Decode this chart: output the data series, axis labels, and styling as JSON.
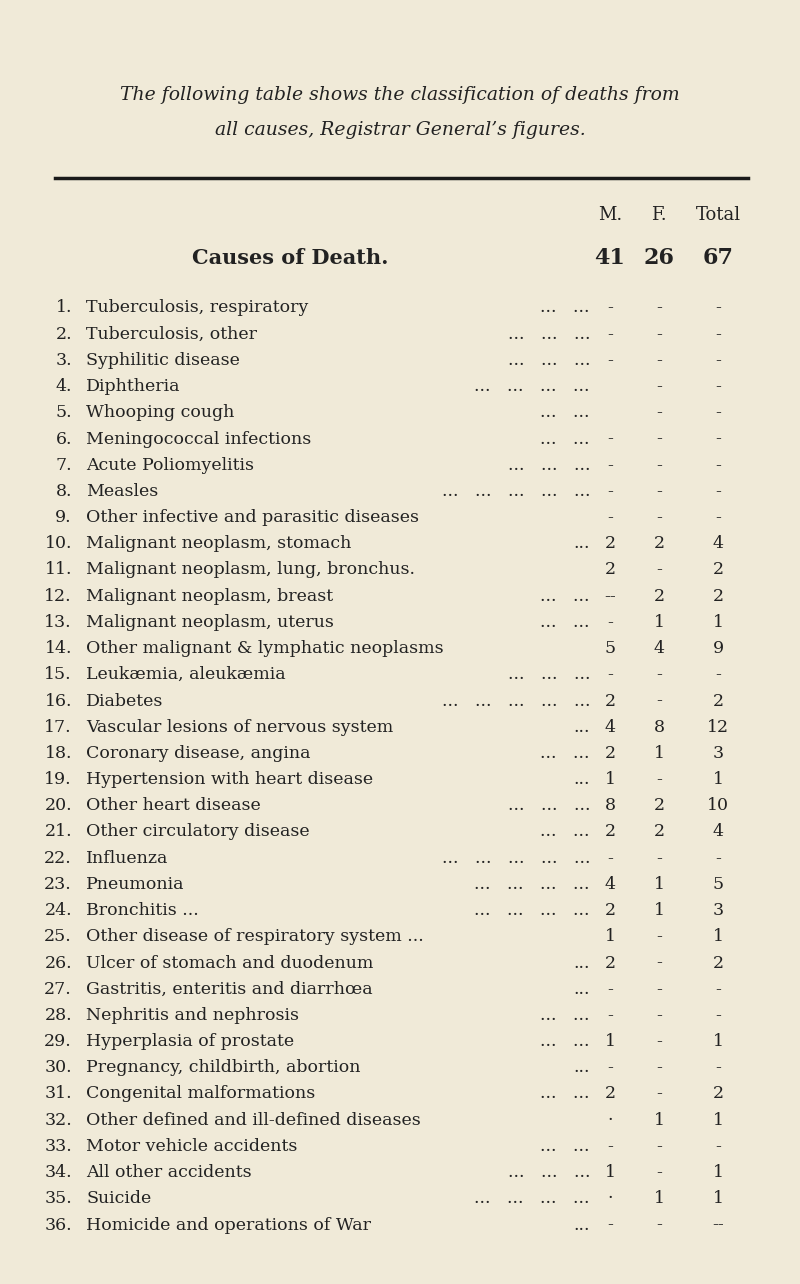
{
  "title_line1": "The following table shows the classification of deaths from",
  "title_line2": "all causes, Registrar General’s figures.",
  "bg_color": "#f0ead8",
  "text_color": "#222222",
  "table_data": [
    {
      "num": "1.",
      "cause": "Tuberculosis, respiratory",
      "dots": "...   ...",
      "M": "-",
      "F": "-",
      "T": "-"
    },
    {
      "num": "2.",
      "cause": "Tuberculosis, other",
      "dots": "...   ...   ...",
      "M": "-",
      "F": "-",
      "T": "-"
    },
    {
      "num": "3.",
      "cause": "Syphilitic disease",
      "dots": "...   ...   ...",
      "M": "-",
      "F": "-",
      "T": "-"
    },
    {
      "num": "4.",
      "cause": "Diphtheria",
      "dots": "...   ...   ...   ...",
      "M": "",
      "F": "-",
      "T": "-"
    },
    {
      "num": "5.",
      "cause": "Whooping cough",
      "dots": "...   ...",
      "M": "",
      "F": "-",
      "T": "-"
    },
    {
      "num": "6.",
      "cause": "Meningococcal infections",
      "dots": "...   ...",
      "M": "-",
      "F": "-",
      "T": "-"
    },
    {
      "num": "7.",
      "cause": "Acute Poliomyelitis",
      "dots": "...   ...   ...",
      "M": "-",
      "F": "-",
      "T": "-"
    },
    {
      "num": "8.",
      "cause": "Measles",
      "dots": "...   ...   ...   ...   ...",
      "M": "-",
      "F": "-",
      "T": "-"
    },
    {
      "num": "9.",
      "cause": "Other infective and parasitic diseases",
      "dots": "",
      "M": "-",
      "F": "-",
      "T": "-"
    },
    {
      "num": "10.",
      "cause": "Malignant neoplasm, stomach",
      "dots": "...",
      "M": "2",
      "F": "2",
      "T": "4"
    },
    {
      "num": "11.",
      "cause": "Malignant neoplasm, lung, bronchus.",
      "dots": "",
      "M": "2",
      "F": "-",
      "T": "2"
    },
    {
      "num": "12.",
      "cause": "Malignant neoplasm, breast",
      "dots": "...   ...",
      "M": "--",
      "F": "2",
      "T": "2"
    },
    {
      "num": "13.",
      "cause": "Malignant neoplasm, uterus",
      "dots": "...   ...",
      "M": "-",
      "F": "1",
      "T": "1"
    },
    {
      "num": "14.",
      "cause": "Other malignant & lymphatic neoplasms",
      "dots": "",
      "M": "5",
      "F": "4",
      "T": "9"
    },
    {
      "num": "15.",
      "cause": "Leukæmia, aleukæmia",
      "dots": "...   ...   ...",
      "M": "-",
      "F": "-",
      "T": "-"
    },
    {
      "num": "16.",
      "cause": "Diabetes",
      "dots": "...   ...   ...   ...   ...",
      "M": "2",
      "F": "-",
      "T": "2"
    },
    {
      "num": "17.",
      "cause": "Vascular lesions of nervous system",
      "dots": "...",
      "M": "4",
      "F": "8",
      "T": "12"
    },
    {
      "num": "18.",
      "cause": "Coronary disease, angina",
      "dots": "...   ...",
      "M": "2",
      "F": "1",
      "T": "3"
    },
    {
      "num": "19.",
      "cause": "Hypertension with heart disease",
      "dots": "...",
      "M": "1",
      "F": "-",
      "T": "1"
    },
    {
      "num": "20.",
      "cause": "Other heart disease",
      "dots": "...   ...   ...",
      "M": "8",
      "F": "2",
      "T": "10"
    },
    {
      "num": "21.",
      "cause": "Other circulatory disease",
      "dots": "...   ...",
      "M": "2",
      "F": "2",
      "T": "4"
    },
    {
      "num": "22.",
      "cause": "Influenza",
      "dots": "...   ...   ...   ...   ...",
      "M": "-",
      "F": "-",
      "T": "-"
    },
    {
      "num": "23.",
      "cause": "Pneumonia",
      "dots": "...   ...   ...   ...",
      "M": "4",
      "F": "1",
      "T": "5"
    },
    {
      "num": "24.",
      "cause": "Bronchitis ...",
      "dots": "...   ...   ...   ...",
      "M": "2",
      "F": "1",
      "T": "3"
    },
    {
      "num": "25.",
      "cause": "Other disease of respiratory system ...",
      "dots": "",
      "M": "1",
      "F": "-",
      "T": "1"
    },
    {
      "num": "26.",
      "cause": "Ulcer of stomach and duodenum",
      "dots": "...",
      "M": "2",
      "F": "-",
      "T": "2"
    },
    {
      "num": "27.",
      "cause": "Gastritis, enteritis and diarrhœa",
      "dots": "...",
      "M": "-",
      "F": "-",
      "T": "-"
    },
    {
      "num": "28.",
      "cause": "Nephritis and nephrosis",
      "dots": "...   ...",
      "M": "-",
      "F": "-",
      "T": "-"
    },
    {
      "num": "29.",
      "cause": "Hyperplasia of prostate",
      "dots": "...   ...",
      "M": "1",
      "F": "-",
      "T": "1"
    },
    {
      "num": "30.",
      "cause": "Pregnancy, childbirth, abortion",
      "dots": "...",
      "M": "-",
      "F": "-",
      "T": "-"
    },
    {
      "num": "31.",
      "cause": "Congenital malformations",
      "dots": "...   ...",
      "M": "2",
      "F": "-",
      "T": "2"
    },
    {
      "num": "32.",
      "cause": "Other defined and ill-defined diseases",
      "dots": "",
      "M": "·",
      "F": "1",
      "T": "1"
    },
    {
      "num": "33.",
      "cause": "Motor vehicle accidents",
      "dots": "...   ...",
      "M": "-",
      "F": "-",
      "T": "-"
    },
    {
      "num": "34.",
      "cause": "All other accidents",
      "dots": "...   ...   ...",
      "M": "1",
      "F": "-",
      "T": "1"
    },
    {
      "num": "35.",
      "cause": "Suicide",
      "dots": "...   ...   ...   ...",
      "M": "·",
      "F": "1",
      "T": "1"
    },
    {
      "num": "36.",
      "cause": "Homicide and operations of War",
      "dots": "...",
      "M": "-",
      "F": "-",
      "T": "--"
    }
  ]
}
